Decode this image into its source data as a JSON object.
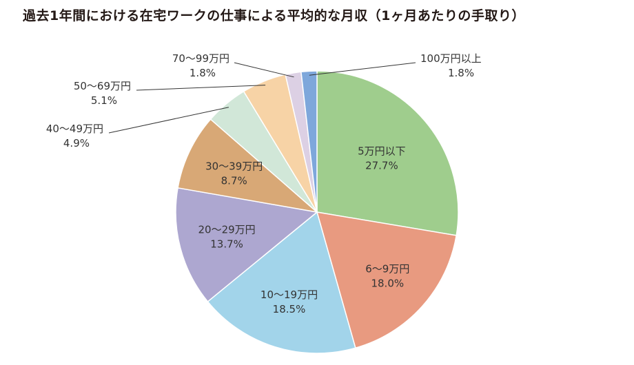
{
  "title": "過去1年間における在宅ワークの仕事による平均的な月収（1ヶ月あたりの手取り）",
  "chart_data": {
    "type": "pie",
    "title": "過去1年間における在宅ワークの仕事による平均的な月収（1ヶ月あたりの手取り）",
    "unit": "%",
    "start": "12 o'clock",
    "direction": "clockwise",
    "slices": [
      {
        "label": "5万円以下",
        "value": 27.7,
        "value_text": "27.7%",
        "color": "#9fcd8d",
        "label_position": "inside"
      },
      {
        "label": "6〜9万円",
        "value": 18.0,
        "value_text": "18.0%",
        "color": "#e89a80",
        "label_position": "inside"
      },
      {
        "label": "10〜19万円",
        "value": 18.5,
        "value_text": "18.5%",
        "color": "#a2d4ea",
        "label_position": "inside"
      },
      {
        "label": "20〜29万円",
        "value": 13.7,
        "value_text": "13.7%",
        "color": "#ada7d0",
        "label_position": "inside"
      },
      {
        "label": "30〜39万円",
        "value": 8.7,
        "value_text": "8.7%",
        "color": "#d8a876",
        "label_position": "inside"
      },
      {
        "label": "40〜49万円",
        "value": 4.9,
        "value_text": "4.9%",
        "color": "#d1e7d8",
        "label_position": "outside"
      },
      {
        "label": "50〜69万円",
        "value": 5.1,
        "value_text": "5.1%",
        "color": "#f7d3a6",
        "label_position": "outside"
      },
      {
        "label": "70〜99万円",
        "value": 1.8,
        "value_text": "1.8%",
        "color": "#dcd0e4",
        "label_position": "outside"
      },
      {
        "label": "100万円以上",
        "value": 1.8,
        "value_text": "1.8%",
        "color": "#7ea7db",
        "label_position": "outside"
      }
    ]
  }
}
